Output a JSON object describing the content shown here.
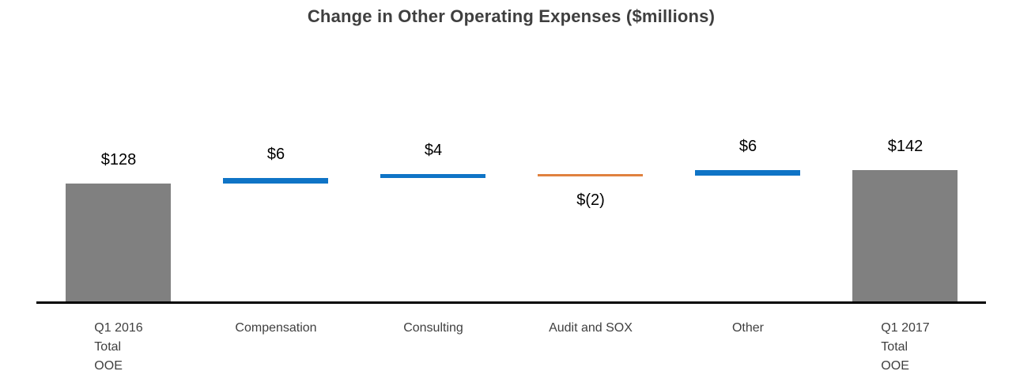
{
  "chart_data": {
    "type": "waterfall",
    "title": "Change in Other Operating Expenses ($millions)",
    "unit": "$millions",
    "grid": false,
    "y_axis_visible": false,
    "legend": false,
    "value_start": 128,
    "value_end": 142,
    "colors": {
      "total": "#808080",
      "increase": "#0f74c6",
      "decrease": "#e0813f",
      "axis_line": "#000000",
      "title_text": "#3f3f3f",
      "value_label_text": "#000000",
      "category_label_text": "#404040"
    },
    "columns": [
      {
        "id": "q1-2016-total-ooe",
        "label_lines": [
          "Q1 2016",
          "Total",
          "OOE"
        ],
        "value": 128,
        "value_label": "$128",
        "kind": "total"
      },
      {
        "id": "compensation",
        "label_lines": [
          "Compensation"
        ],
        "value": 6,
        "value_label": "$6",
        "kind": "increase"
      },
      {
        "id": "consulting",
        "label_lines": [
          "Consulting"
        ],
        "value": 4,
        "value_label": "$4",
        "kind": "increase"
      },
      {
        "id": "audit-and-sox",
        "label_lines": [
          "Audit and SOX"
        ],
        "value": -2,
        "value_label": "$(2)",
        "kind": "decrease"
      },
      {
        "id": "other",
        "label_lines": [
          "Other"
        ],
        "value": 6,
        "value_label": "$6",
        "kind": "increase"
      },
      {
        "id": "q1-2017-total-ooe",
        "label_lines": [
          "Q1 2017",
          "Total",
          "OOE"
        ],
        "value": 142,
        "value_label": "$142",
        "kind": "total"
      }
    ]
  }
}
